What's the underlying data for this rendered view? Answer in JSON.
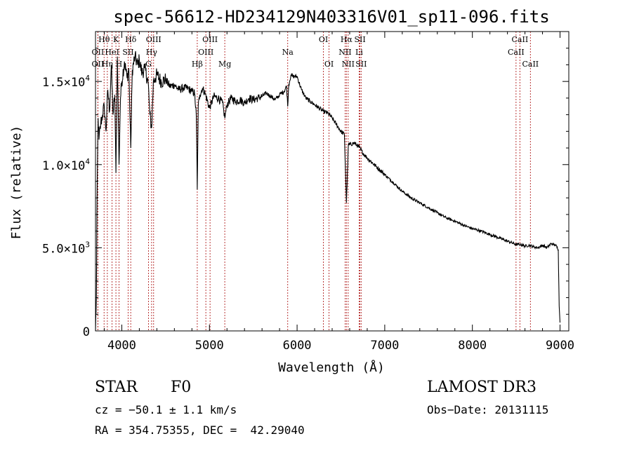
{
  "chart_data": {
    "type": "line",
    "title": "spec-56612-HD234129N403316V01_sp11-096.fits",
    "xlabel": "Wavelength (Å)",
    "ylabel": "Flux (relative)",
    "xlim": [
      3700,
      9100
    ],
    "ylim": [
      0,
      18000
    ],
    "xticks": [
      4000,
      5000,
      6000,
      7000,
      8000,
      9000
    ],
    "xtick_labels": [
      "4000",
      "5000",
      "6000",
      "7000",
      "8000",
      "9000"
    ],
    "yticks": [
      0,
      5000,
      10000,
      15000
    ],
    "ytick_labels": [
      {
        "text": "0",
        "mant": "0",
        "exp": ""
      },
      {
        "text": "5.0×10^3",
        "mant": "5.0×10",
        "exp": "3"
      },
      {
        "text": "1.0×10^4",
        "mant": "1.0×10",
        "exp": "4"
      },
      {
        "text": "1.5×10^4",
        "mant": "1.5×10",
        "exp": "4"
      }
    ],
    "series": [
      {
        "name": "spectrum",
        "x": [
          3700,
          3710,
          3720,
          3730,
          3740,
          3760,
          3780,
          3800,
          3820,
          3840,
          3860,
          3880,
          3900,
          3920,
          3933,
          3950,
          3968,
          3985,
          4000,
          4030,
          4060,
          4080,
          4102,
          4120,
          4150,
          4180,
          4200,
          4230,
          4260,
          4300,
          4320,
          4340,
          4360,
          4380,
          4400,
          4450,
          4500,
          4550,
          4600,
          4650,
          4700,
          4750,
          4800,
          4830,
          4850,
          4861,
          4872,
          4890,
          4920,
          4950,
          5000,
          5050,
          5100,
          5150,
          5175,
          5200,
          5250,
          5300,
          5350,
          5400,
          5450,
          5500,
          5550,
          5600,
          5650,
          5700,
          5750,
          5800,
          5850,
          5880,
          5893,
          5905,
          5930,
          5950,
          6000,
          6050,
          6100,
          6150,
          6200,
          6250,
          6300,
          6350,
          6400,
          6450,
          6500,
          6540,
          6563,
          6585,
          6600,
          6650,
          6700,
          6750,
          6800,
          6900,
          7000,
          7100,
          7200,
          7300,
          7400,
          7500,
          7600,
          7700,
          7800,
          7900,
          8000,
          8100,
          8200,
          8300,
          8400,
          8500,
          8550,
          8600,
          8650,
          8700,
          8750,
          8800,
          8850,
          8900,
          8950,
          8980,
          8990,
          9000
        ],
        "y": [
          0,
          2000,
          9000,
          12800,
          11500,
          12500,
          13000,
          13500,
          12000,
          14500,
          13200,
          16000,
          13000,
          14200,
          9500,
          16500,
          10000,
          14000,
          15000,
          16200,
          15200,
          15800,
          11000,
          15700,
          16500,
          16000,
          16300,
          15500,
          15800,
          15000,
          13000,
          12200,
          15000,
          15200,
          15400,
          15000,
          15100,
          14700,
          14800,
          14500,
          14600,
          14600,
          14400,
          14300,
          13000,
          8500,
          13500,
          14200,
          14600,
          14300,
          13400,
          14100,
          14000,
          13700,
          12800,
          13600,
          14000,
          13800,
          13900,
          13700,
          14000,
          13900,
          14000,
          14100,
          14300,
          14100,
          13900,
          14200,
          14400,
          14700,
          13500,
          14800,
          15400,
          15300,
          15300,
          14500,
          14000,
          13800,
          13600,
          13400,
          13200,
          13100,
          12800,
          12400,
          12000,
          11800,
          7700,
          11200,
          11200,
          11300,
          11100,
          10700,
          10400,
          9900,
          9400,
          8900,
          8400,
          8000,
          7700,
          7400,
          7100,
          6800,
          6600,
          6350,
          6150,
          6000,
          5800,
          5600,
          5400,
          5200,
          5200,
          5100,
          5150,
          5050,
          5000,
          5150,
          5000,
          5250,
          5150,
          4900,
          1500,
          500
        ]
      }
    ],
    "line_markers": [
      {
        "label": "Hθ",
        "x": 3798,
        "row": 0
      },
      {
        "label": "K",
        "x": 3933,
        "row": 0
      },
      {
        "label": "Hδ",
        "x": 4102,
        "row": 0
      },
      {
        "label": "OIII",
        "x": 4363,
        "row": 0
      },
      {
        "label": "OIII",
        "x": 5007,
        "row": 0
      },
      {
        "label": "OI",
        "x": 6300,
        "row": 0
      },
      {
        "label": "Hα",
        "x": 6563,
        "row": 0
      },
      {
        "label": "SII",
        "x": 6717,
        "row": 0
      },
      {
        "label": "CaII",
        "x": 8542,
        "row": 0
      },
      {
        "label": "OII",
        "x": 3727,
        "row": 1
      },
      {
        "label": "HeI",
        "x": 3889,
        "row": 1
      },
      {
        "label": "SII",
        "x": 4072,
        "row": 1
      },
      {
        "label": "Hγ",
        "x": 4340,
        "row": 1
      },
      {
        "label": "OIII",
        "x": 4959,
        "row": 1
      },
      {
        "label": "Na",
        "x": 5893,
        "row": 1
      },
      {
        "label": "NII",
        "x": 6548,
        "row": 1
      },
      {
        "label": "Li",
        "x": 6708,
        "row": 1
      },
      {
        "label": "CaII",
        "x": 8498,
        "row": 1
      },
      {
        "label": "OII",
        "x": 3727,
        "row": 2
      },
      {
        "label": "Hη",
        "x": 3835,
        "row": 2
      },
      {
        "label": "H",
        "x": 3968,
        "row": 2
      },
      {
        "label": "G",
        "x": 4305,
        "row": 2
      },
      {
        "label": "Hβ",
        "x": 4861,
        "row": 2
      },
      {
        "label": "Mg",
        "x": 5175,
        "row": 2
      },
      {
        "label": "OI",
        "x": 6364,
        "row": 2
      },
      {
        "label": "NII",
        "x": 6583,
        "row": 2
      },
      {
        "label": "SII",
        "x": 6731,
        "row": 2
      },
      {
        "label": "CaII",
        "x": 8662,
        "row": 2
      }
    ]
  },
  "info": {
    "object_type": "STAR",
    "subclass": "F0",
    "survey": "LAMOST DR3",
    "cz": "cz = −50.1 ± 1.1 km/s",
    "obs_date": "Obs−Date: 20131115",
    "coords": "RA = 354.75355, DEC =  42.29040"
  }
}
